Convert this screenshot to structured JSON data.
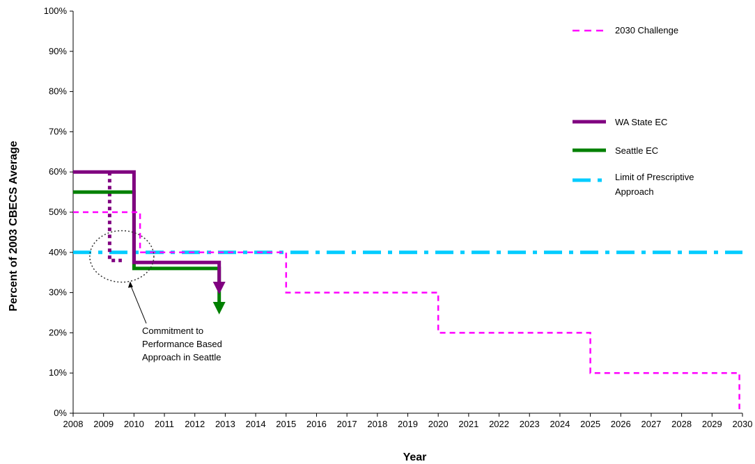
{
  "chart_data": {
    "type": "line",
    "xlabel": "Year",
    "ylabel": "Percent of 2003 CBECS Average",
    "xlim": [
      2008,
      2030
    ],
    "ylim": [
      0,
      100
    ],
    "x_ticks": [
      "2008",
      "2009",
      "2010",
      "2011",
      "2012",
      "2013",
      "2014",
      "2015",
      "2016",
      "2017",
      "2018",
      "2019",
      "2020",
      "2021",
      "2022",
      "2023",
      "2024",
      "2025",
      "2026",
      "2027",
      "2028",
      "2029",
      "2030"
    ],
    "y_ticks": [
      "0%",
      "10%",
      "20%",
      "30%",
      "40%",
      "50%",
      "60%",
      "70%",
      "80%",
      "90%",
      "100%"
    ],
    "grid": false,
    "legend_position": "right",
    "series": [
      {
        "name": "2030 Challenge",
        "color": "#ff00ff",
        "style": "dashed",
        "points": [
          [
            2008,
            50
          ],
          [
            2010.2,
            50
          ],
          [
            2010.2,
            40
          ],
          [
            2015,
            40
          ],
          [
            2015,
            30
          ],
          [
            2020,
            30
          ],
          [
            2020,
            20
          ],
          [
            2025,
            20
          ],
          [
            2025,
            10
          ],
          [
            2029.9,
            10
          ],
          [
            2029.9,
            1
          ]
        ]
      },
      {
        "name": "WA State EC",
        "color": "#800080",
        "style": "solid",
        "points": [
          [
            2008,
            60
          ],
          [
            2010,
            60
          ],
          [
            2010,
            37.5
          ],
          [
            2012.8,
            37.5
          ],
          [
            2012.8,
            32
          ]
        ],
        "end_arrow": true
      },
      {
        "name": "Seattle EC",
        "color": "#008000",
        "style": "solid",
        "points": [
          [
            2008,
            55
          ],
          [
            2010,
            55
          ],
          [
            2010,
            36
          ],
          [
            2012.8,
            36
          ],
          [
            2012.8,
            27
          ]
        ],
        "end_arrow": true
      },
      {
        "name": "Limit of Prescriptive Approach",
        "color": "#00ccff",
        "style": "dash-dot",
        "points": [
          [
            2008,
            40
          ],
          [
            2030,
            40
          ]
        ]
      },
      {
        "name": "",
        "color": "#800080",
        "style": "dotted",
        "points": [
          [
            2009.2,
            60
          ],
          [
            2009.2,
            38
          ],
          [
            2009.6,
            38
          ]
        ]
      }
    ],
    "legend_entries": [
      "2030 Challenge",
      "WA State EC",
      "Seattle EC",
      "Limit of Prescriptive Approach"
    ],
    "annotation": {
      "lines": [
        "Commitment to",
        "Performance Based",
        "Approach in Seattle"
      ],
      "circle_center": [
        2009.6,
        39
      ],
      "arrow_to": [
        2009.9,
        31
      ]
    }
  }
}
